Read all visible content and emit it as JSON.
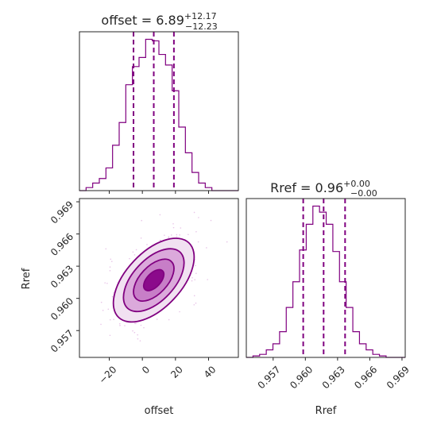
{
  "colors": {
    "accent": "#800080",
    "contour_fill": [
      "#f1e1f1",
      "#dba9db",
      "#c77ec7",
      "#8b0a8b"
    ],
    "axis": "#262626",
    "scatter": "#d89ed8"
  },
  "chart_data": [
    {
      "type": "histogram",
      "panel": "offset-marginal",
      "title": "offset = 6.89^{+12.17}_{-12.23}",
      "title_parts": {
        "prefix": "offset = ",
        "value": "6.89",
        "upper": "+12.17",
        "lower": "−12.23"
      },
      "xlim": [
        -38,
        58
      ],
      "bin_edges": [
        -38,
        -34,
        -30,
        -26,
        -22,
        -18,
        -14,
        -10,
        -6,
        -2,
        2,
        6,
        10,
        14,
        18,
        22,
        26,
        30,
        34,
        38,
        42,
        46,
        50,
        54,
        58
      ],
      "counts": [
        0,
        2,
        5,
        8,
        15,
        30,
        45,
        70,
        82,
        88,
        100,
        99,
        90,
        83,
        66,
        42,
        25,
        12,
        5,
        2,
        0,
        0,
        0,
        0
      ],
      "quantiles": [
        -5.34,
        6.89,
        19.06
      ],
      "xticks": [
        -20,
        0,
        20,
        40
      ]
    },
    {
      "type": "histogram",
      "panel": "rref-marginal",
      "title": "Rref = 0.96^{+0.00}_{-0.00}",
      "title_parts": {
        "prefix": "Rref = ",
        "value": "0.96",
        "upper": "+0.00",
        "lower": "−0.00"
      },
      "xlim": [
        0.9545,
        0.9693
      ],
      "bin_edges": [
        0.9545,
        0.95512,
        0.95574,
        0.95636,
        0.95698,
        0.9576,
        0.95822,
        0.95884,
        0.95946,
        0.96008,
        0.9607,
        0.96132,
        0.96194,
        0.96256,
        0.96318,
        0.9638,
        0.96442,
        0.96504,
        0.96566,
        0.96628,
        0.9669,
        0.96752,
        0.96814,
        0.96876,
        0.9693
      ],
      "counts": [
        0,
        1,
        2,
        5,
        9,
        17,
        33,
        50,
        71,
        88,
        100,
        96,
        88,
        70,
        50,
        33,
        17,
        9,
        5,
        2,
        1,
        0,
        0,
        0
      ],
      "quantiles": [
        0.9598,
        0.9617,
        0.9637
      ],
      "xticks": [
        0.957,
        0.96,
        0.963,
        0.966,
        0.969
      ],
      "xtick_labels": [
        "0.957",
        "0.960",
        "0.963",
        "0.966",
        "0.969"
      ],
      "xlabel": "Rref"
    },
    {
      "type": "contour",
      "panel": "offset-vs-rref",
      "xlabel": "offset",
      "ylabel": "Rref",
      "xlim": [
        -38,
        58
      ],
      "ylim": [
        0.9545,
        0.9693
      ],
      "xticks": [
        -20,
        0,
        20,
        40
      ],
      "xtick_labels": [
        "−20",
        "0",
        "20",
        "40"
      ],
      "yticks": [
        0.957,
        0.96,
        0.963,
        0.966,
        0.969
      ],
      "ytick_labels": [
        "0.957",
        "0.960",
        "0.963",
        "0.966",
        "0.969"
      ],
      "center": [
        6.89,
        0.9617
      ],
      "sigma": [
        12.2,
        0.00195
      ],
      "correlation": 0.55,
      "levels_sigma": [
        0.5,
        1.0,
        1.5,
        2.0
      ],
      "scatter_points": 350,
      "scatter_seed": 7
    }
  ]
}
